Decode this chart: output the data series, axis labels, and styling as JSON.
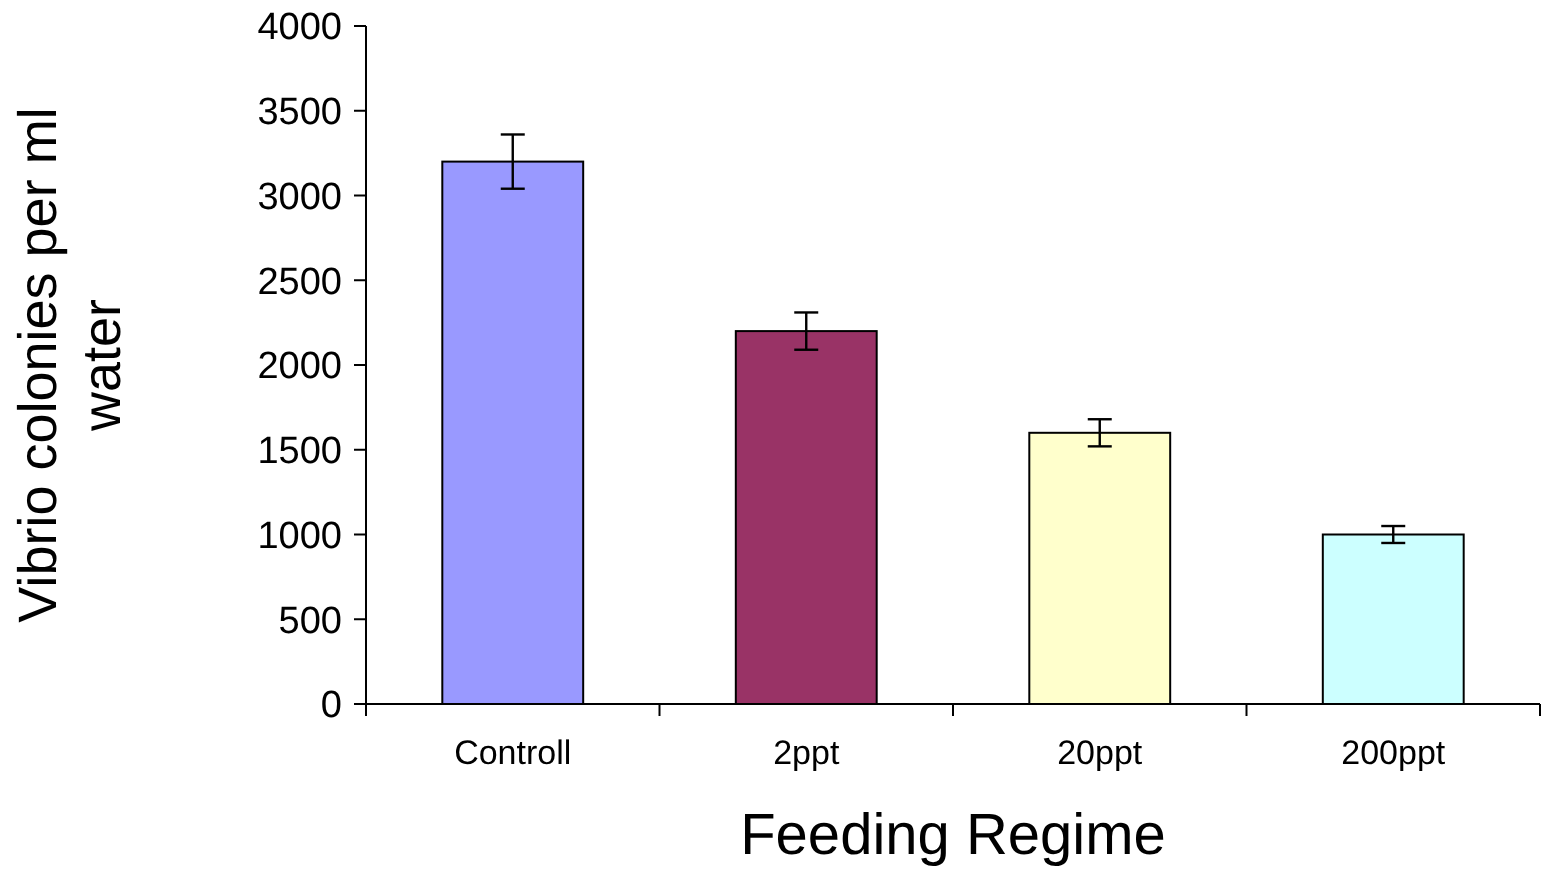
{
  "chart_data": {
    "type": "bar",
    "xlabel": "Feeding Regime",
    "ylabel": "Vibrio colonies per ml water",
    "categories": [
      "Controll",
      "2ppt",
      "20ppt",
      "200ppt"
    ],
    "values": [
      3200,
      2200,
      1600,
      1000
    ],
    "errors": [
      160,
      110,
      80,
      50
    ],
    "colors": [
      "#9999ff",
      "#993366",
      "#ffffcc",
      "#ccffff"
    ],
    "ylim": [
      0,
      4000
    ],
    "yticks": [
      0,
      500,
      1000,
      1500,
      2000,
      2500,
      3000,
      3500,
      4000
    ],
    "grid": false
  }
}
